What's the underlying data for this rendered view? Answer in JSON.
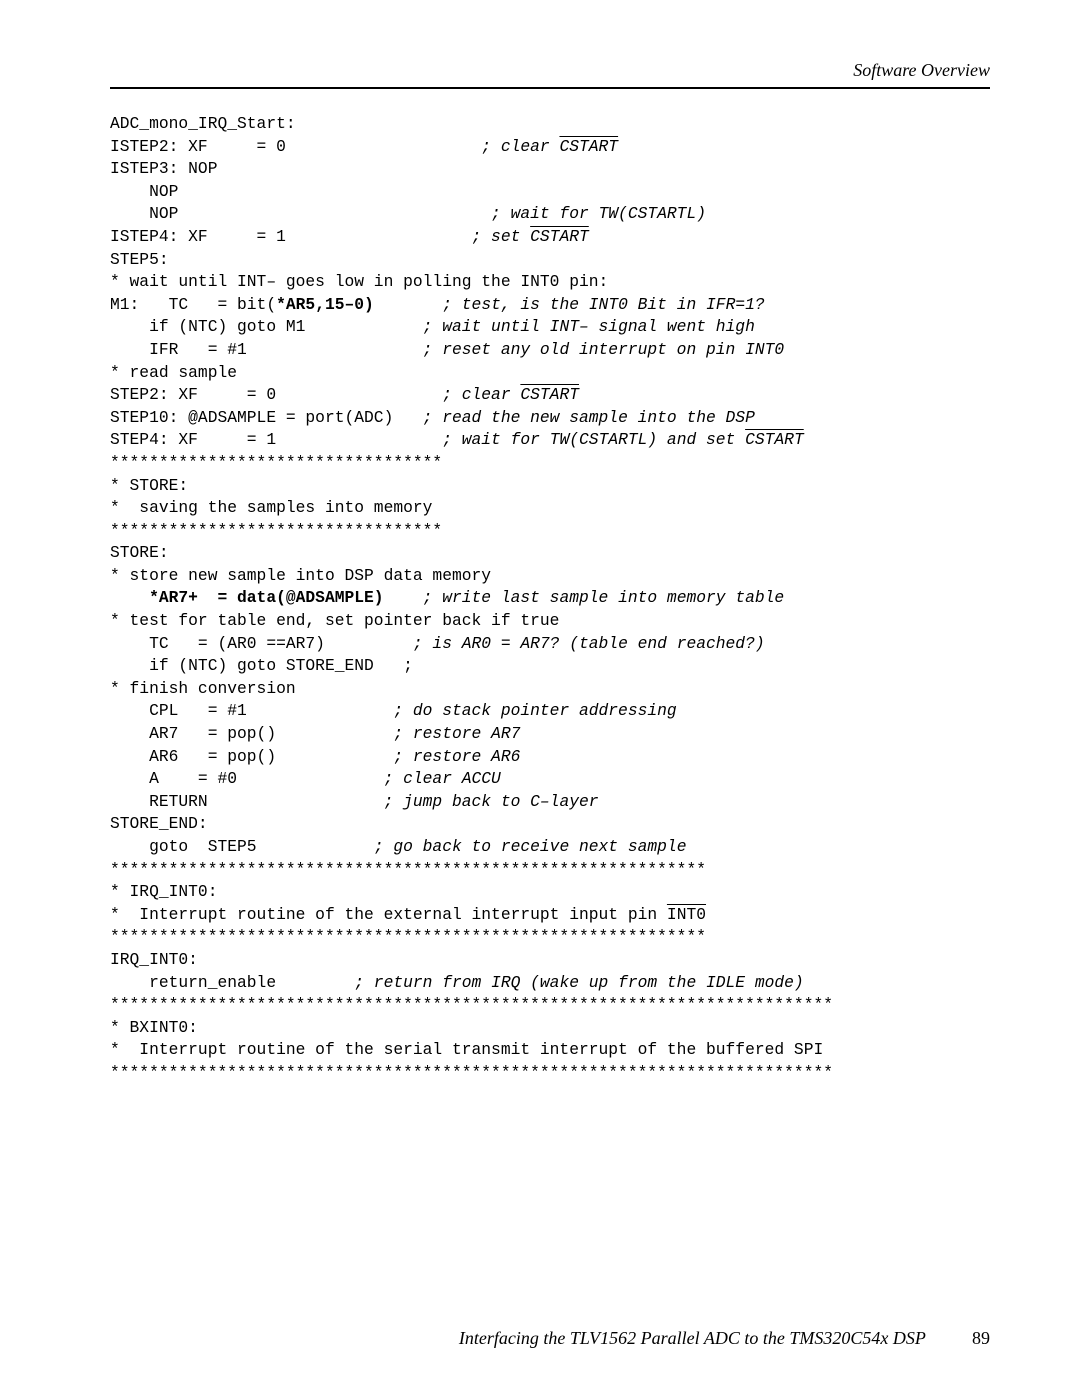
{
  "header": {
    "section_title": "Software Overview"
  },
  "footer": {
    "doc_title": "Interfacing the TLV1562 Parallel ADC to the TMS320C54x DSP",
    "page_number": "89"
  },
  "code": {
    "l01a": "ADC_mono_IRQ_Start:",
    "l02a": "ISTEP2: XF     = 0                    ",
    "l02c": "; clear ",
    "l02ov": "CSTART",
    "l03a": "ISTEP3: NOP",
    "l04a": "    NOP",
    "l05a": "    NOP                                ",
    "l05c": "; wait for TW(CSTARTL)",
    "l06a": "ISTEP4: XF     = 1                   ",
    "l06c": "; set ",
    "l06ov": "CSTART",
    "l07a": "STEP5:",
    "l08a": "* wait until INT– goes low in polling the INT0 pin:",
    "l09a": "M1:   TC   = bit(",
    "l09b": "*AR5,15–0)",
    "l09sp": "       ",
    "l09c": "; test, is the INT0 Bit in IFR=1?",
    "l10a": "    if (NTC) goto M1            ",
    "l10c": "; wait until INT– signal went high",
    "l11a": "    IFR   = #1                  ",
    "l11c": "; reset any old interrupt on pin INT0",
    "l12a": "* read sample",
    "l13a": "STEP2: XF     = 0                 ",
    "l13c": "; clear ",
    "l13ov": "CSTART",
    "l14a": "STEP10: @ADSAMPLE = port(ADC)   ",
    "l14c": "; read the new sample into the DSP",
    "l15a": "STEP4: XF     = 1                 ",
    "l15c": "; wait for TW(CSTARTL) and set ",
    "l15ov": "CSTART",
    "l16a": "**********************************",
    "l17a": "* STORE:",
    "l18a": "*  saving the samples into memory",
    "l19a": "**********************************",
    "l20a": "STORE:",
    "l21a": "* store new sample into DSP data memory",
    "l22b": "    *AR7+  = data(@ADSAMPLE)",
    "l22sp": "    ",
    "l22c": "; write last sample into memory table",
    "l23a": "* test for table end, set pointer back if true",
    "l24a": "    TC   = (AR0 ==AR7)         ",
    "l24c": "; is AR0 = AR7? (table end reached?)",
    "l25a": "    if (NTC) goto STORE_END   ;",
    "l26a": "* finish conversion",
    "l27a": "    CPL   = #1               ",
    "l27c": "; do stack pointer addressing",
    "l28a": "    AR7   = pop()            ",
    "l28c": "; restore AR7",
    "l29a": "    AR6   = pop()            ",
    "l29c": "; restore AR6",
    "l30a": "    A    = #0               ",
    "l30c": "; clear ACCU",
    "l31a": "    RETURN                  ",
    "l31c": "; jump back to C–layer",
    "l32a": "STORE_END:",
    "l33a": "    goto  STEP5            ",
    "l33c": "; go back to receive next sample",
    "l34a": "*************************************************************",
    "l35a": "* IRQ_INT0:",
    "l36a": "*  Interrupt routine of the external interrupt input pin ",
    "l36ov": "INT0",
    "l37a": "*************************************************************",
    "l38a": "IRQ_INT0:",
    "l39a": "    return_enable        ",
    "l39c": "; return from IRQ (wake up from the IDLE mode)",
    "l40a": "**************************************************************************",
    "l41a": "* BXINT0:",
    "l42a": "*  Interrupt routine of the serial transmit interrupt of the buffered SPI",
    "l43a": "**************************************************************************"
  }
}
